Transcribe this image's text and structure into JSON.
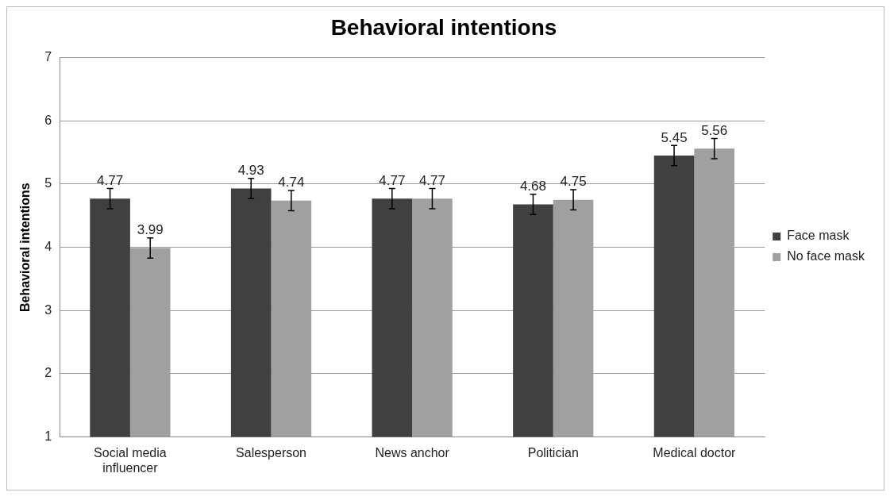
{
  "chart_data": {
    "type": "bar",
    "title": "Behavioral intentions",
    "ylabel": "Behavioral intentions",
    "categories": [
      "Social media influencer",
      "Salesperson",
      "News anchor",
      "Politician",
      "Medical doctor"
    ],
    "series": [
      {
        "name": "Face mask",
        "color": "#404040",
        "values": [
          4.77,
          4.93,
          4.77,
          4.68,
          5.45
        ],
        "errors": [
          0.16,
          0.16,
          0.16,
          0.16,
          0.16
        ]
      },
      {
        "name": "No face mask",
        "color": "#a0a0a0",
        "values": [
          3.99,
          4.74,
          4.77,
          4.75,
          5.56
        ],
        "errors": [
          0.16,
          0.16,
          0.16,
          0.16,
          0.16
        ]
      }
    ],
    "ylim": [
      1,
      7
    ],
    "yticks": [
      1,
      2,
      3,
      4,
      5,
      6,
      7
    ],
    "grid": "y",
    "legend": "right",
    "data_labels": true
  }
}
